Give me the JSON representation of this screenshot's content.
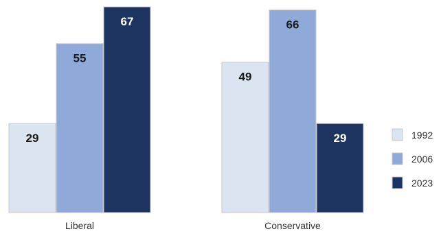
{
  "chart_data": {
    "type": "bar",
    "categories": [
      "Liberal",
      "Conservative"
    ],
    "series": [
      {
        "name": "1992",
        "color": "#dbe4f1",
        "values": [
          29,
          49
        ]
      },
      {
        "name": "2006",
        "color": "#8faad8",
        "values": [
          55,
          66
        ]
      },
      {
        "name": "2023",
        "color": "#1d3461",
        "values": [
          67,
          29
        ]
      }
    ],
    "ylim": [
      0,
      67
    ],
    "grid": false,
    "legend_position": "right",
    "label_colors": {
      "dark_text": "#1a1a1a",
      "light_text": "#ffffff"
    }
  }
}
